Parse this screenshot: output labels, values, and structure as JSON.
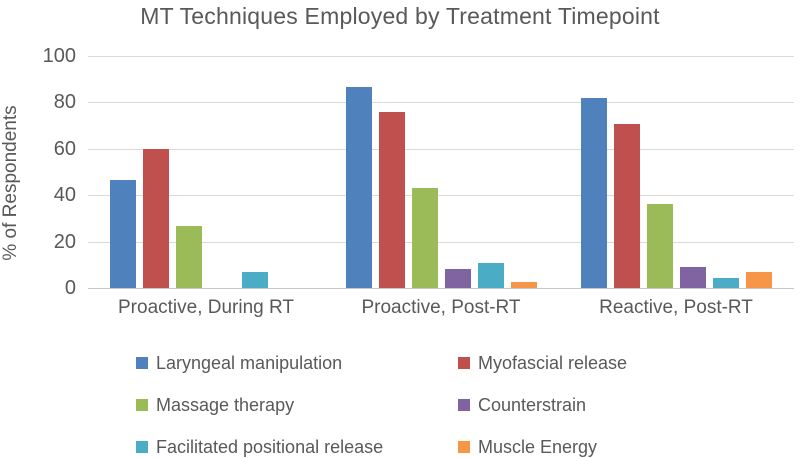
{
  "chart_data": {
    "type": "bar",
    "title": "MT Techniques Employed by Treatment Timepoint",
    "ylabel": "% of Respondents",
    "xlabel": "",
    "categories": [
      "Proactive, During RT",
      "Proactive, Post-RT",
      "Reactive, Post-RT"
    ],
    "series": [
      {
        "name": "Laryngeal manipulation",
        "color": "#4F81BD",
        "values": [
          46.7,
          86.5,
          81.8
        ]
      },
      {
        "name": "Myofascial release",
        "color": "#C0504D",
        "values": [
          60.0,
          75.7,
          70.5
        ]
      },
      {
        "name": "Massage therapy",
        "color": "#9BBB59",
        "values": [
          26.7,
          43.2,
          36.4
        ]
      },
      {
        "name": "Counterstrain",
        "color": "#8064A2",
        "values": [
          0,
          8.1,
          9.1
        ]
      },
      {
        "name": "Facilitated positional release",
        "color": "#4BACC6",
        "values": [
          6.7,
          10.8,
          4.5
        ]
      },
      {
        "name": "Muscle Energy",
        "color": "#F79646",
        "values": [
          0,
          2.7,
          6.8
        ]
      }
    ],
    "ylim": [
      0,
      100
    ],
    "yticks": [
      0,
      20,
      40,
      60,
      80,
      100
    ],
    "grid": "horizontal-only",
    "legend_position": "bottom-two-columns",
    "colors": {
      "text": "#595959",
      "gridline": "#D9D9D9",
      "axis_line": "#C6C6C6",
      "background": "#FFFFFF"
    }
  }
}
